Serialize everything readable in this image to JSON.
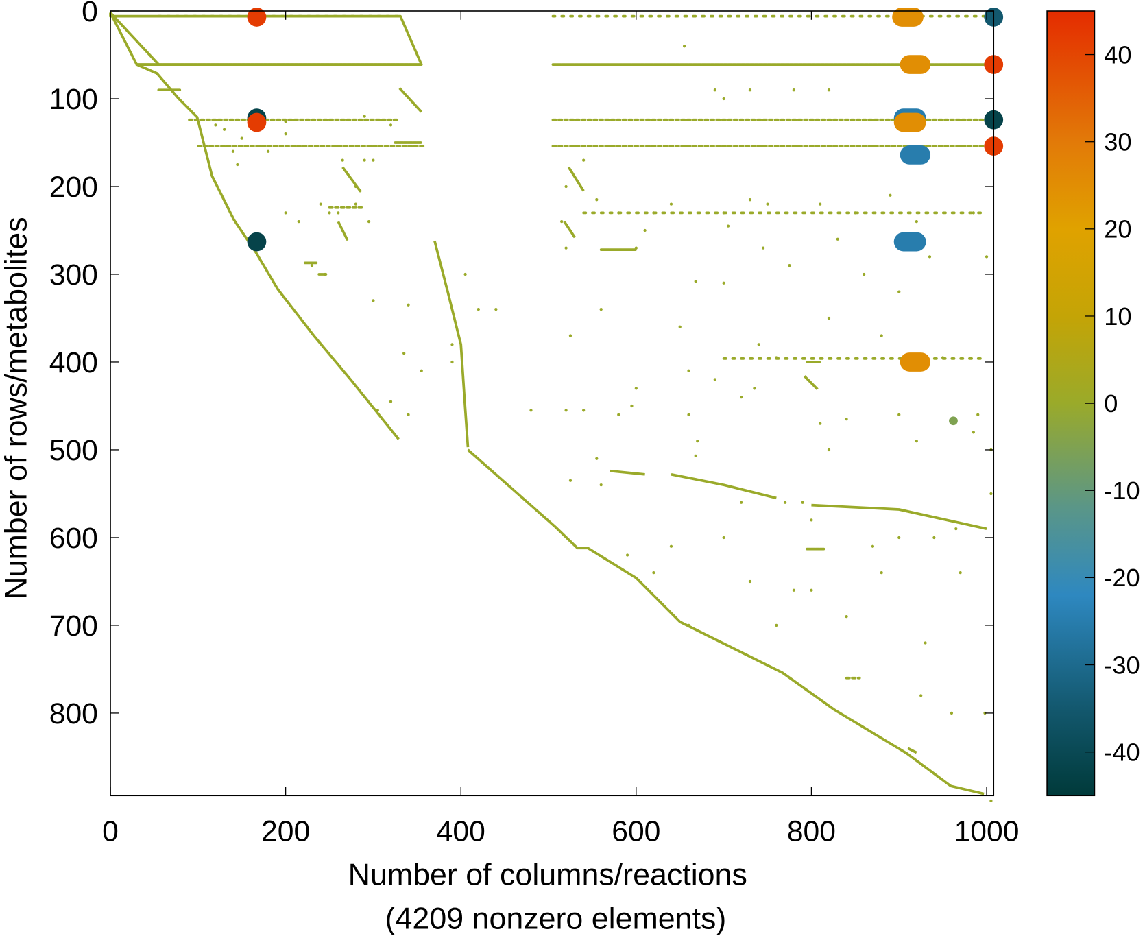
{
  "chart_data": {
    "type": "scatter",
    "subtype": "sparsity-pattern",
    "xlabel": "Number of columns/reactions",
    "xlabel_sub": "(4209 nonzero elements)",
    "ylabel": "Number of rows/metabolites",
    "xlim": [
      0,
      1008
    ],
    "ylim": [
      894,
      0
    ],
    "x_ticks": [
      "0",
      "200",
      "400",
      "600",
      "800",
      "1000"
    ],
    "x_tick_values": [
      0,
      200,
      400,
      600,
      800,
      1000
    ],
    "y_ticks": [
      "0",
      "100",
      "200",
      "300",
      "400",
      "500",
      "600",
      "700",
      "800"
    ],
    "y_tick_values": [
      0,
      100,
      200,
      300,
      400,
      500,
      600,
      700,
      800
    ],
    "grid": false,
    "colorbar": {
      "range": [
        -45,
        45
      ],
      "ticks": [
        "40",
        "30",
        "20",
        "10",
        "0",
        "-10",
        "-20",
        "-30",
        "-40"
      ],
      "tick_values": [
        40,
        30,
        20,
        10,
        0,
        -10,
        -20,
        -30,
        -40
      ],
      "colors": [
        {
          "v": -45,
          "c": "#003a3a"
        },
        {
          "v": -35,
          "c": "#13586e"
        },
        {
          "v": -22,
          "c": "#2e88c0"
        },
        {
          "v": -12,
          "c": "#5a9688"
        },
        {
          "v": 0,
          "c": "#9aaa2a"
        },
        {
          "v": 10,
          "c": "#c4a406"
        },
        {
          "v": 20,
          "c": "#e0a200"
        },
        {
          "v": 30,
          "c": "#e27a08"
        },
        {
          "v": 45,
          "c": "#e42c00"
        }
      ]
    },
    "base_value": 0,
    "diagonal_paths": [
      [
        [
          0,
          2
        ],
        [
          30,
          61
        ],
        [
          53,
          71
        ],
        [
          78,
          100
        ],
        [
          99,
          121
        ],
        [
          116,
          188
        ],
        [
          141,
          238
        ],
        [
          166,
          275
        ],
        [
          191,
          317
        ],
        [
          233,
          371
        ],
        [
          275,
          421
        ],
        [
          329,
          488
        ]
      ],
      [
        [
          408,
          500
        ],
        [
          508,
          588
        ],
        [
          533,
          612
        ],
        [
          545,
          612
        ],
        [
          600,
          646
        ],
        [
          650,
          696
        ],
        [
          767,
          754
        ],
        [
          826,
          796
        ],
        [
          909,
          846
        ],
        [
          959,
          883
        ],
        [
          997,
          892
        ]
      ],
      [
        [
          0,
          2
        ],
        [
          0,
          6
        ],
        [
          331,
          6
        ],
        [
          355,
          61
        ],
        [
          30,
          61
        ]
      ],
      [
        [
          0,
          2
        ],
        [
          55,
          61
        ]
      ],
      [
        [
          370,
          262
        ],
        [
          385,
          320
        ],
        [
          400,
          380
        ],
        [
          404,
          440
        ],
        [
          408,
          497
        ]
      ],
      [
        [
          330,
          88
        ],
        [
          355,
          115
        ]
      ],
      [
        [
          523,
          178
        ],
        [
          540,
          205
        ]
      ],
      [
        [
          518,
          240
        ],
        [
          530,
          258
        ]
      ],
      [
        [
          792,
          416
        ],
        [
          807,
          431
        ]
      ],
      [
        [
          570,
          524
        ],
        [
          610,
          528
        ]
      ],
      [
        [
          640,
          528
        ],
        [
          700,
          540
        ],
        [
          760,
          555
        ]
      ],
      [
        [
          800,
          563
        ],
        [
          900,
          568
        ],
        [
          1000,
          590
        ]
      ],
      [
        [
          910,
          840
        ],
        [
          920,
          845
        ]
      ],
      [
        [
          265,
          178
        ],
        [
          285,
          205
        ]
      ],
      [
        [
          260,
          240
        ],
        [
          270,
          260
        ]
      ]
    ],
    "row_bands": [
      {
        "row": 6,
        "from": 55,
        "to": 330,
        "density": "sparse"
      },
      {
        "row": 6,
        "from": 505,
        "to": 1000,
        "density": "sparse"
      },
      {
        "row": 61,
        "from": 30,
        "to": 355,
        "density": "dense"
      },
      {
        "row": 61,
        "from": 505,
        "to": 1005,
        "density": "dense"
      },
      {
        "row": 124,
        "from": 90,
        "to": 330,
        "density": "medium"
      },
      {
        "row": 124,
        "from": 505,
        "to": 1005,
        "density": "medium"
      },
      {
        "row": 154,
        "from": 100,
        "to": 360,
        "density": "medium"
      },
      {
        "row": 154,
        "from": 505,
        "to": 1005,
        "density": "medium"
      },
      {
        "row": 150,
        "from": 325,
        "to": 355,
        "density": "dense"
      },
      {
        "row": 90,
        "from": 55,
        "to": 80,
        "density": "dense"
      },
      {
        "row": 224,
        "from": 250,
        "to": 290,
        "density": "medium"
      },
      {
        "row": 230,
        "from": 540,
        "to": 1000,
        "density": "sparse"
      },
      {
        "row": 272,
        "from": 560,
        "to": 600,
        "density": "dense"
      },
      {
        "row": 287,
        "from": 222,
        "to": 235,
        "density": "dense"
      },
      {
        "row": 300,
        "from": 238,
        "to": 246,
        "density": "dense"
      },
      {
        "row": 396,
        "from": 700,
        "to": 1000,
        "density": "sparse"
      },
      {
        "row": 400,
        "from": 795,
        "to": 810,
        "density": "dense"
      },
      {
        "row": 613,
        "from": 795,
        "to": 815,
        "density": "dense"
      },
      {
        "row": 760,
        "from": 840,
        "to": 855,
        "density": "medium"
      }
    ],
    "scatter_points": [
      [
        120,
        130
      ],
      [
        130,
        135
      ],
      [
        150,
        145
      ],
      [
        140,
        160
      ],
      [
        145,
        175
      ],
      [
        180,
        160
      ],
      [
        200,
        230
      ],
      [
        215,
        240
      ],
      [
        240,
        220
      ],
      [
        250,
        230
      ],
      [
        260,
        230
      ],
      [
        280,
        220
      ],
      [
        290,
        170
      ],
      [
        295,
        240
      ],
      [
        280,
        200
      ],
      [
        285,
        205
      ],
      [
        265,
        250
      ],
      [
        270,
        260
      ],
      [
        265,
        170
      ],
      [
        300,
        170
      ],
      [
        320,
        130
      ],
      [
        200,
        140
      ],
      [
        230,
        290
      ],
      [
        245,
        300
      ],
      [
        300,
        330
      ],
      [
        305,
        455
      ],
      [
        320,
        445
      ],
      [
        335,
        390
      ],
      [
        340,
        460
      ],
      [
        340,
        335
      ],
      [
        355,
        410
      ],
      [
        390,
        380
      ],
      [
        390,
        400
      ],
      [
        420,
        340
      ],
      [
        405,
        300
      ],
      [
        480,
        455
      ],
      [
        520,
        200
      ],
      [
        540,
        170
      ],
      [
        515,
        240
      ],
      [
        520,
        270
      ],
      [
        525,
        370
      ],
      [
        520,
        455
      ],
      [
        540,
        455
      ],
      [
        525,
        535
      ],
      [
        555,
        510
      ],
      [
        560,
        540
      ],
      [
        580,
        460
      ],
      [
        595,
        450
      ],
      [
        600,
        430
      ],
      [
        640,
        220
      ],
      [
        650,
        360
      ],
      [
        660,
        410
      ],
      [
        660,
        460
      ],
      [
        670,
        490
      ],
      [
        690,
        420
      ],
      [
        700,
        310
      ],
      [
        720,
        440
      ],
      [
        735,
        430
      ],
      [
        740,
        380
      ],
      [
        760,
        395
      ],
      [
        770,
        560
      ],
      [
        790,
        560
      ],
      [
        800,
        580
      ],
      [
        810,
        220
      ],
      [
        820,
        350
      ],
      [
        830,
        260
      ],
      [
        850,
        230
      ],
      [
        860,
        300
      ],
      [
        880,
        370
      ],
      [
        890,
        210
      ],
      [
        900,
        320
      ],
      [
        920,
        240
      ],
      [
        935,
        280
      ],
      [
        950,
        395
      ],
      [
        965,
        590
      ],
      [
        970,
        640
      ],
      [
        985,
        230
      ],
      [
        1000,
        280
      ],
      [
        990,
        460
      ],
      [
        940,
        600
      ],
      [
        930,
        720
      ],
      [
        925,
        780
      ],
      [
        960,
        800
      ],
      [
        800,
        660
      ],
      [
        840,
        690
      ],
      [
        870,
        610
      ],
      [
        880,
        640
      ],
      [
        900,
        600
      ],
      [
        780,
        660
      ],
      [
        760,
        700
      ],
      [
        730,
        650
      ],
      [
        700,
        600
      ],
      [
        660,
        700
      ],
      [
        620,
        640
      ],
      [
        640,
        610
      ],
      [
        590,
        620
      ],
      [
        720,
        560
      ],
      [
        600,
        270
      ],
      [
        580,
        230
      ],
      [
        610,
        250
      ],
      [
        620,
        230
      ],
      [
        555,
        215
      ],
      [
        700,
        230
      ],
      [
        705,
        245
      ],
      [
        730,
        215
      ],
      [
        750,
        220
      ],
      [
        745,
        270
      ],
      [
        775,
        290
      ],
      [
        810,
        470
      ],
      [
        840,
        465
      ],
      [
        820,
        500
      ],
      [
        900,
        460
      ],
      [
        920,
        490
      ],
      [
        985,
        480
      ],
      [
        1005,
        550
      ],
      [
        1005,
        500
      ],
      [
        1005,
        900
      ],
      [
        998,
        800
      ],
      [
        290,
        120
      ],
      [
        200,
        126
      ],
      [
        668,
        308
      ],
      [
        668,
        507
      ],
      [
        440,
        340
      ],
      [
        560,
        340
      ],
      [
        690,
        90
      ],
      [
        730,
        90
      ],
      [
        780,
        90
      ],
      [
        820,
        90
      ],
      [
        700,
        100
      ],
      [
        655,
        40
      ]
    ],
    "large_entries": [
      {
        "col": 167,
        "row": 7,
        "value": 42
      },
      {
        "col": 903,
        "col_end": 917,
        "row": 7,
        "value": 25
      },
      {
        "col": 1008,
        "row": 7,
        "value": -35
      },
      {
        "col": 912,
        "col_end": 925,
        "row": 61,
        "value": 25
      },
      {
        "col": 1008,
        "row": 61,
        "value": 42
      },
      {
        "col": 167,
        "row": 122,
        "value": -42
      },
      {
        "col": 167,
        "row": 127,
        "value": 42
      },
      {
        "col": 905,
        "col_end": 920,
        "row": 122,
        "value": -25
      },
      {
        "col": 905,
        "col_end": 920,
        "row": 127,
        "value": 25
      },
      {
        "col": 1008,
        "row": 124,
        "value": -42
      },
      {
        "col": 1008,
        "row": 154,
        "value": 42
      },
      {
        "col": 912,
        "col_end": 925,
        "row": 164,
        "value": -25
      },
      {
        "col": 167,
        "row": 263,
        "value": -42
      },
      {
        "col": 905,
        "col_end": 920,
        "row": 263,
        "value": -25
      },
      {
        "col": 912,
        "col_end": 925,
        "row": 400,
        "value": 25
      },
      {
        "col": 962,
        "row": 467,
        "value": -5
      }
    ]
  }
}
